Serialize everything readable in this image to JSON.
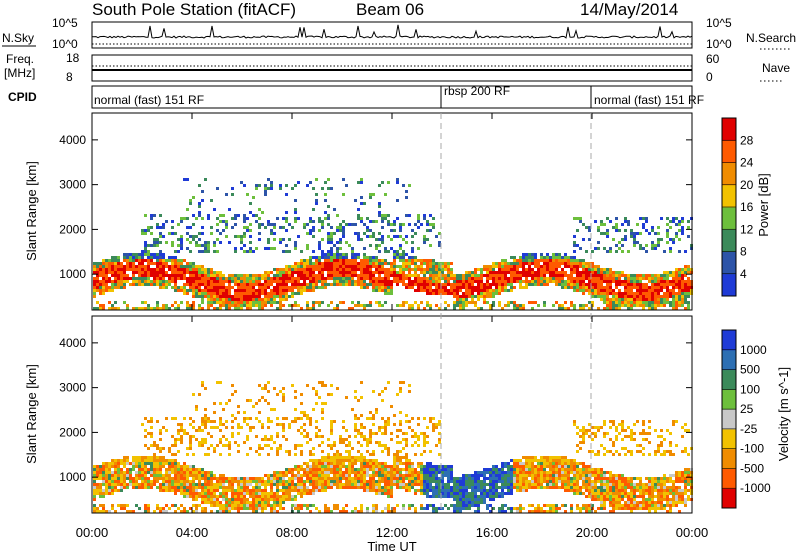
{
  "header": {
    "station": "South Pole Station (fitACF)",
    "beam": "Beam 06",
    "date": "14/May/2014"
  },
  "panels": {
    "nsky": {
      "label": "N.Sky",
      "tick_top": "10^5",
      "tick_bottom": "10^0",
      "right_label": "N.Search",
      "right_top": "10^5",
      "right_bottom": "10^0"
    },
    "freq": {
      "label_line1": "Freq.",
      "label_line2": "[MHz]",
      "tick_top": "18",
      "tick_bottom": "8",
      "right_label": "Nave",
      "right_top": "60",
      "right_bottom": "0"
    },
    "cpid": {
      "label": "CPID",
      "segments": [
        "normal (fast) 151 RF",
        "rbsp 200 RF",
        "normal (fast) 151 RF"
      ]
    }
  },
  "chart_data": [
    {
      "type": "heatmap",
      "title": "",
      "ylabel": "Slant Range [km]",
      "xlabel": "",
      "ylim": [
        200,
        4600
      ],
      "y_ticks": [
        1000,
        2000,
        3000,
        4000
      ],
      "colorbar_label": "Power [dB]",
      "colorbar_ticks": [
        "4",
        "8",
        "12",
        "16",
        "20",
        "24",
        "28"
      ],
      "colorbar_colors": [
        "#1f3bd6",
        "#2d54a8",
        "#3b8a5a",
        "#6dbf3c",
        "#f2c200",
        "#f08c00",
        "#ff5a00",
        "#e00000"
      ]
    },
    {
      "type": "heatmap",
      "title": "",
      "ylabel": "Slant Range [km]",
      "xlabel": "Time UT",
      "ylim": [
        200,
        4600
      ],
      "y_ticks": [
        1000,
        2000,
        3000,
        4000
      ],
      "x_ticks": [
        "00:00",
        "04:00",
        "08:00",
        "12:00",
        "16:00",
        "20:00",
        "00:00"
      ],
      "colorbar_label": "Velocity [m s^-1]",
      "colorbar_ticks": [
        "1000",
        "500",
        "100",
        "25",
        "-25",
        "-100",
        "-500",
        "-1000"
      ],
      "colorbar_colors": [
        "#1f3bd6",
        "#2d6fb3",
        "#3b8a5a",
        "#6dbf3c",
        "#c8c8c8",
        "#f2c200",
        "#f08c00",
        "#ff5a00",
        "#e00000"
      ]
    }
  ]
}
